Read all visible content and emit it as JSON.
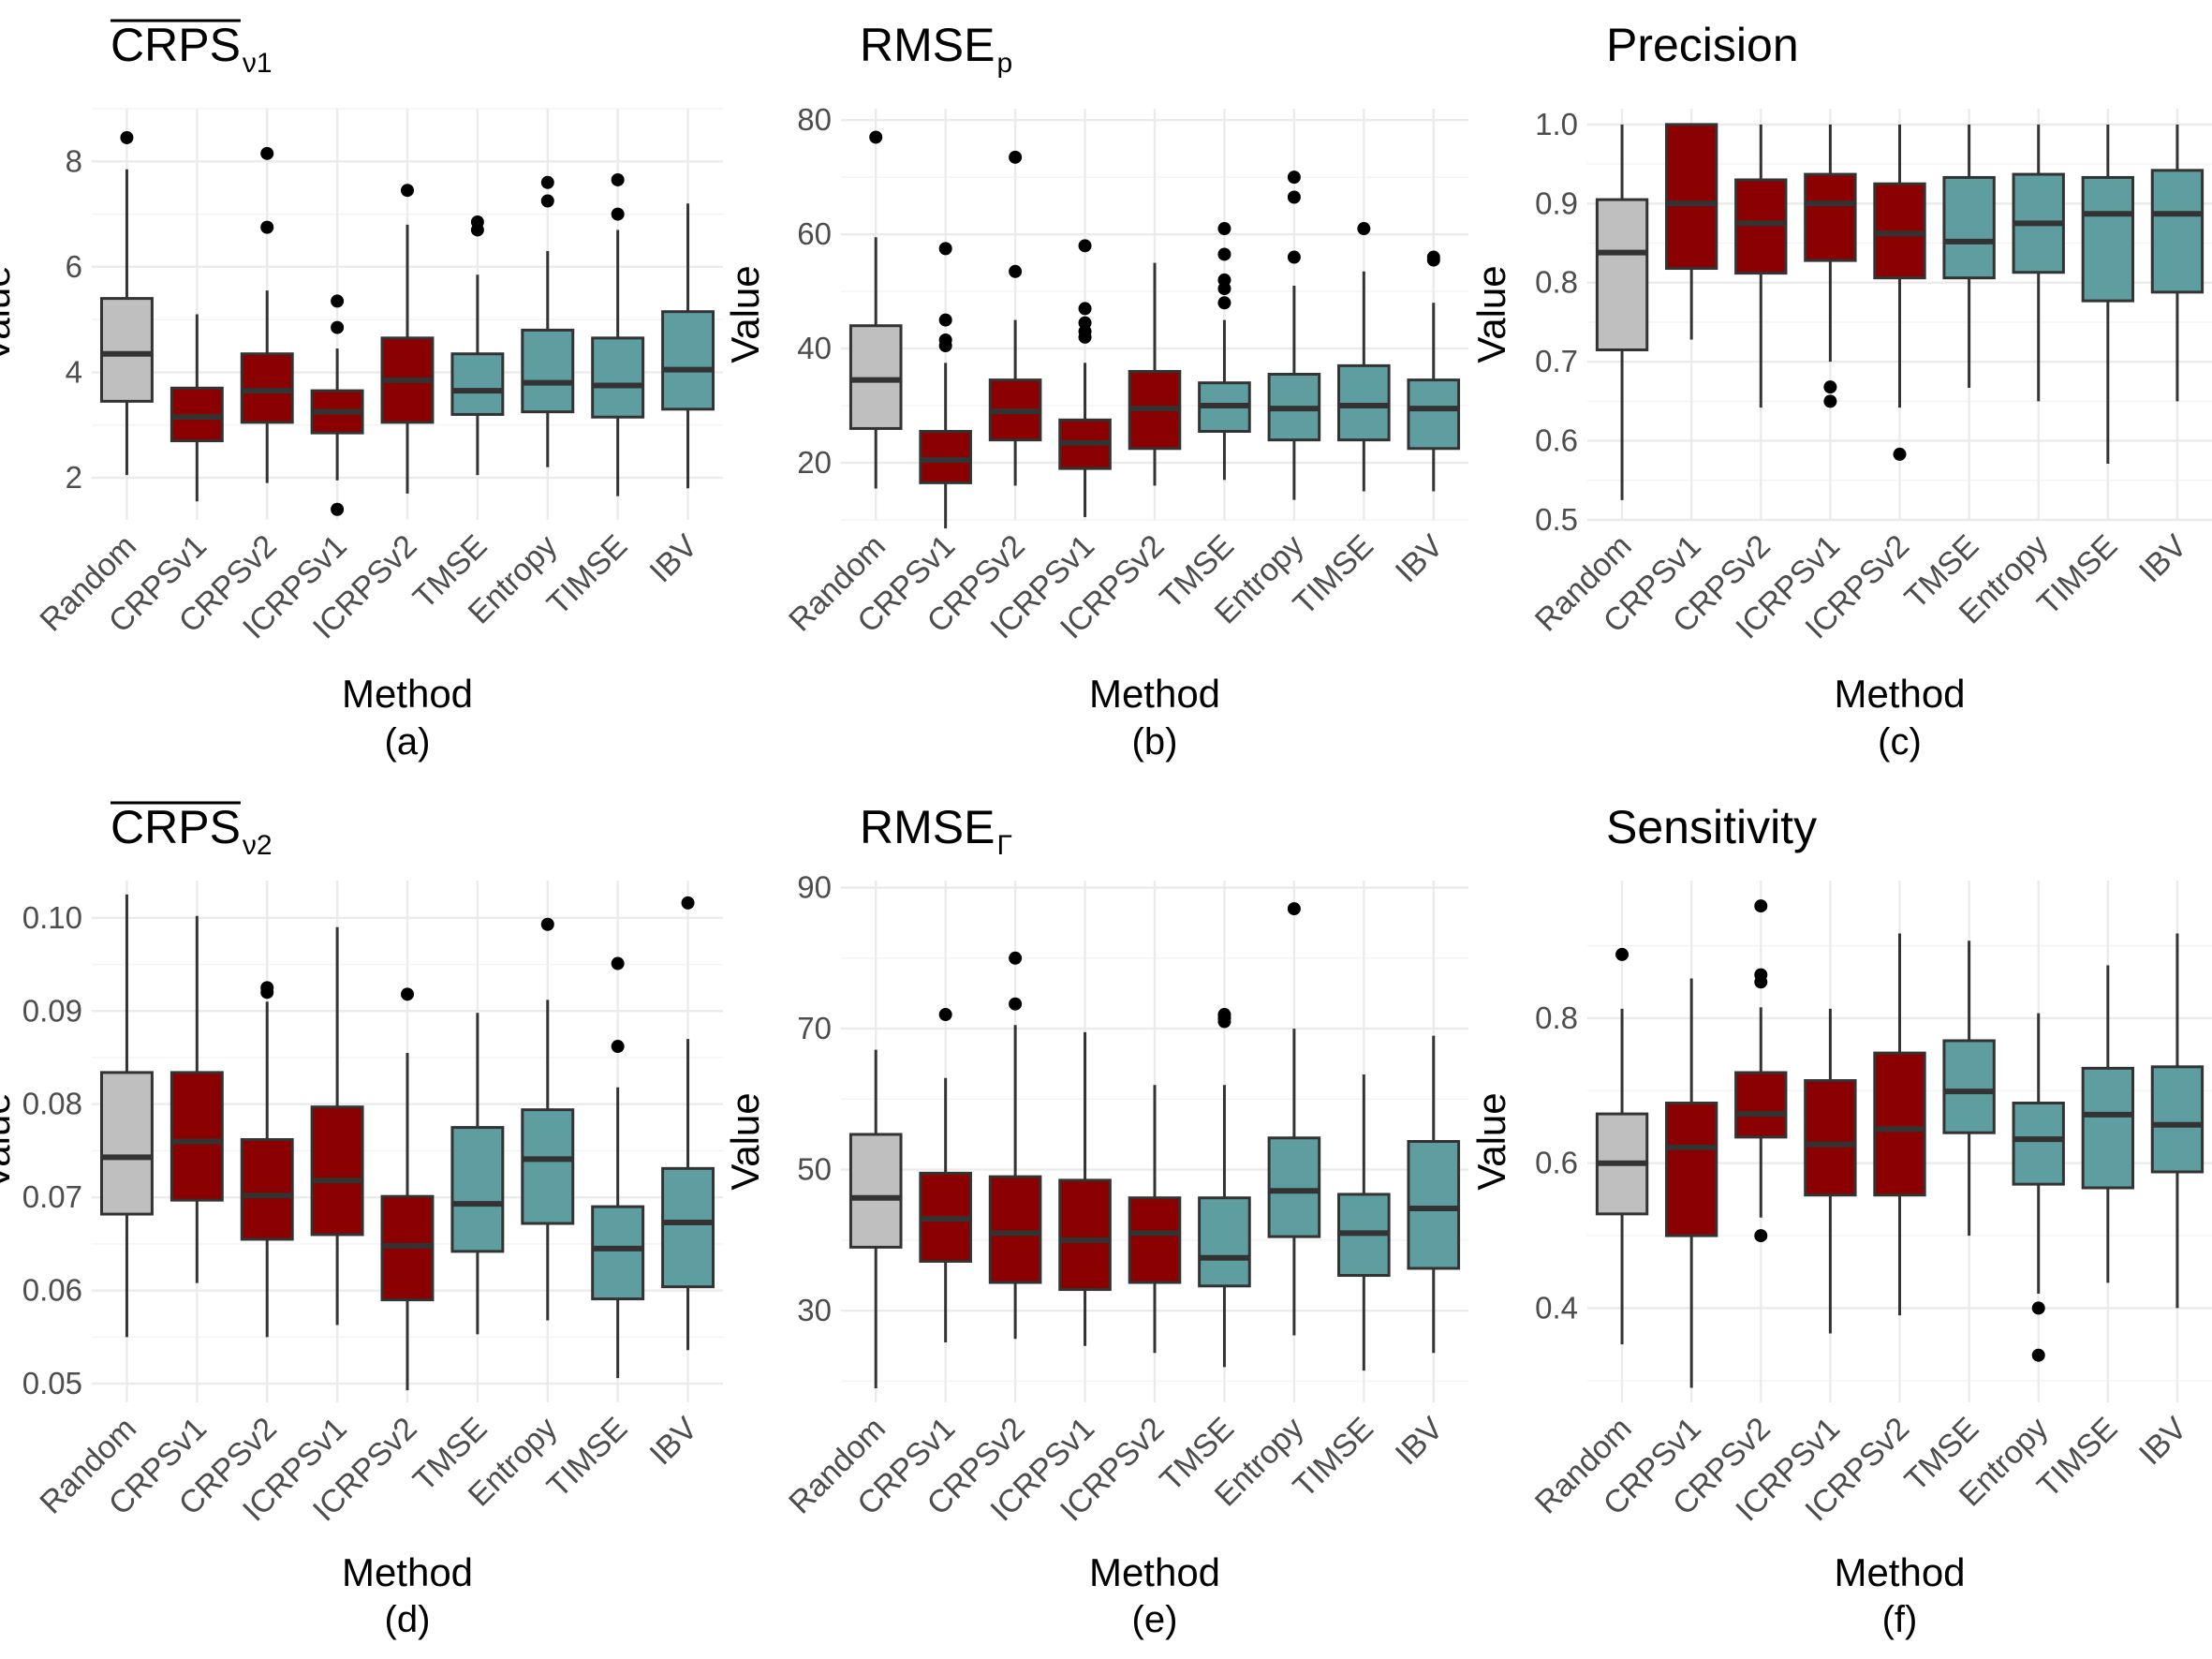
{
  "colors": {
    "baseline": "#bfbfbf",
    "crps": "#8b0000",
    "other": "#5f9ea0",
    "edge": "#333333",
    "median": "#333333"
  },
  "chart_data": [
    {
      "panel": "(a)",
      "type": "box",
      "title": "CRPS",
      "title_sub": "ν1",
      "title_overline": true,
      "xlabel": "Method",
      "ylabel": "Value",
      "ylim": [
        1.2,
        9.0
      ],
      "yticks": [
        2,
        4,
        6,
        8
      ],
      "categories": [
        "Random",
        "CRPSv1",
        "CRPSv2",
        "ICRPSv1",
        "ICRPSv2",
        "TMSE",
        "Entropy",
        "TIMSE",
        "IBV"
      ],
      "groups": [
        "baseline",
        "crps",
        "crps",
        "crps",
        "crps",
        "other",
        "other",
        "other",
        "other"
      ],
      "boxes": [
        {
          "lo": 2.05,
          "q1": 3.45,
          "median": 4.35,
          "q3": 5.4,
          "hi": 7.85,
          "out": [
            8.45
          ]
        },
        {
          "lo": 1.55,
          "q1": 2.7,
          "median": 3.15,
          "q3": 3.7,
          "hi": 5.1,
          "out": []
        },
        {
          "lo": 1.9,
          "q1": 3.05,
          "median": 3.65,
          "q3": 4.35,
          "hi": 5.55,
          "out": [
            6.75,
            8.15
          ]
        },
        {
          "lo": 1.95,
          "q1": 2.85,
          "median": 3.25,
          "q3": 3.65,
          "hi": 4.45,
          "out": [
            1.4,
            4.85,
            5.35
          ]
        },
        {
          "lo": 1.7,
          "q1": 3.05,
          "median": 3.85,
          "q3": 4.65,
          "hi": 6.8,
          "out": [
            7.45
          ]
        },
        {
          "lo": 2.05,
          "q1": 3.2,
          "median": 3.65,
          "q3": 4.35,
          "hi": 5.85,
          "out": [
            6.7,
            6.85
          ]
        },
        {
          "lo": 2.2,
          "q1": 3.25,
          "median": 3.8,
          "q3": 4.8,
          "hi": 6.3,
          "out": [
            7.25,
            7.6
          ]
        },
        {
          "lo": 1.65,
          "q1": 3.15,
          "median": 3.75,
          "q3": 4.65,
          "hi": 6.7,
          "out": [
            7.0,
            7.65
          ]
        },
        {
          "lo": 1.8,
          "q1": 3.3,
          "median": 4.05,
          "q3": 5.15,
          "hi": 7.2,
          "out": []
        }
      ]
    },
    {
      "panel": "(b)",
      "type": "box",
      "title": "RMSE",
      "title_sub": "p",
      "title_overline": false,
      "xlabel": "Method",
      "ylabel": "Value",
      "ylim": [
        10,
        82
      ],
      "yticks": [
        20,
        40,
        60,
        80
      ],
      "categories": [
        "Random",
        "CRPSv1",
        "CRPSv2",
        "ICRPSv1",
        "ICRPSv2",
        "TMSE",
        "Entropy",
        "TIMSE",
        "IBV"
      ],
      "groups": [
        "baseline",
        "crps",
        "crps",
        "crps",
        "crps",
        "other",
        "other",
        "other",
        "other"
      ],
      "boxes": [
        {
          "lo": 15.5,
          "q1": 26.0,
          "median": 34.5,
          "q3": 44.0,
          "hi": 59.5,
          "out": [
            77.0
          ]
        },
        {
          "lo": 8.5,
          "q1": 16.5,
          "median": 20.5,
          "q3": 25.5,
          "hi": 37.5,
          "out": [
            40.5,
            41.5,
            45.0,
            57.5
          ]
        },
        {
          "lo": 16.0,
          "q1": 24.0,
          "median": 29.0,
          "q3": 34.5,
          "hi": 45.0,
          "out": [
            53.5,
            73.5
          ]
        },
        {
          "lo": 10.5,
          "q1": 19.0,
          "median": 23.5,
          "q3": 27.5,
          "hi": 37.5,
          "out": [
            42.0,
            43.0,
            44.5,
            47.0,
            58.0
          ]
        },
        {
          "lo": 16.0,
          "q1": 22.5,
          "median": 29.5,
          "q3": 36.0,
          "hi": 55.0,
          "out": []
        },
        {
          "lo": 17.0,
          "q1": 25.5,
          "median": 30.0,
          "q3": 34.0,
          "hi": 45.0,
          "out": [
            48.0,
            50.5,
            52.0,
            56.5,
            61.0
          ]
        },
        {
          "lo": 13.5,
          "q1": 24.0,
          "median": 29.5,
          "q3": 35.5,
          "hi": 51.0,
          "out": [
            56.0,
            66.5,
            70.0
          ]
        },
        {
          "lo": 15.0,
          "q1": 24.0,
          "median": 30.0,
          "q3": 37.0,
          "hi": 53.5,
          "out": [
            61.0
          ]
        },
        {
          "lo": 15.0,
          "q1": 22.5,
          "median": 29.5,
          "q3": 34.5,
          "hi": 48.0,
          "out": [
            55.5,
            56.0
          ]
        }
      ]
    },
    {
      "panel": "(c)",
      "type": "box",
      "title": "Precision",
      "title_sub": "",
      "title_overline": false,
      "xlabel": "Method",
      "ylabel": "Value",
      "ylim": [
        0.5,
        1.02
      ],
      "yticks": [
        0.5,
        0.6,
        0.7,
        0.8,
        0.9,
        1.0
      ],
      "ytick_labels": [
        "0.5",
        "0.6",
        "0.7",
        "0.8",
        "0.9",
        "1.0"
      ],
      "categories": [
        "Random",
        "CRPSv1",
        "CRPSv2",
        "ICRPSv1",
        "ICRPSv2",
        "TMSE",
        "Entropy",
        "TIMSE",
        "IBV"
      ],
      "groups": [
        "baseline",
        "crps",
        "crps",
        "crps",
        "crps",
        "other",
        "other",
        "other",
        "other"
      ],
      "boxes": [
        {
          "lo": 0.525,
          "q1": 0.715,
          "median": 0.838,
          "q3": 0.905,
          "hi": 1.0,
          "out": []
        },
        {
          "lo": 0.728,
          "q1": 0.818,
          "median": 0.9,
          "q3": 1.0,
          "hi": 1.0,
          "out": []
        },
        {
          "lo": 0.642,
          "q1": 0.812,
          "median": 0.875,
          "q3": 0.93,
          "hi": 1.0,
          "out": []
        },
        {
          "lo": 0.7,
          "q1": 0.828,
          "median": 0.9,
          "q3": 0.937,
          "hi": 1.0,
          "out": [
            0.65,
            0.668
          ]
        },
        {
          "lo": 0.642,
          "q1": 0.806,
          "median": 0.862,
          "q3": 0.925,
          "hi": 1.0,
          "out": [
            0.583
          ]
        },
        {
          "lo": 0.667,
          "q1": 0.806,
          "median": 0.852,
          "q3": 0.933,
          "hi": 1.0,
          "out": []
        },
        {
          "lo": 0.65,
          "q1": 0.813,
          "median": 0.875,
          "q3": 0.937,
          "hi": 1.0,
          "out": []
        },
        {
          "lo": 0.571,
          "q1": 0.777,
          "median": 0.887,
          "q3": 0.933,
          "hi": 1.0,
          "out": []
        },
        {
          "lo": 0.65,
          "q1": 0.788,
          "median": 0.887,
          "q3": 0.942,
          "hi": 1.0,
          "out": []
        }
      ]
    },
    {
      "panel": "(d)",
      "type": "box",
      "title": "CRPS",
      "title_sub": "ν2",
      "title_overline": true,
      "xlabel": "Method",
      "ylabel": "Value",
      "ylim": [
        0.048,
        0.104
      ],
      "yticks": [
        0.05,
        0.06,
        0.07,
        0.08,
        0.09,
        0.1
      ],
      "ytick_labels": [
        "0.05",
        "0.06",
        "0.07",
        "0.08",
        "0.09",
        "0.10"
      ],
      "categories": [
        "Random",
        "CRPSv1",
        "CRPSv2",
        "ICRPSv1",
        "ICRPSv2",
        "TMSE",
        "Entropy",
        "TIMSE",
        "IBV"
      ],
      "groups": [
        "baseline",
        "crps",
        "crps",
        "crps",
        "crps",
        "other",
        "other",
        "other",
        "other"
      ],
      "boxes": [
        {
          "lo": 0.055,
          "q1": 0.0682,
          "median": 0.0743,
          "q3": 0.0834,
          "hi": 0.1025,
          "out": []
        },
        {
          "lo": 0.0608,
          "q1": 0.0697,
          "median": 0.076,
          "q3": 0.0834,
          "hi": 0.1002,
          "out": []
        },
        {
          "lo": 0.055,
          "q1": 0.0655,
          "median": 0.0702,
          "q3": 0.0762,
          "hi": 0.091,
          "out": [
            0.092,
            0.0925
          ]
        },
        {
          "lo": 0.0563,
          "q1": 0.066,
          "median": 0.0718,
          "q3": 0.0797,
          "hi": 0.099,
          "out": []
        },
        {
          "lo": 0.0493,
          "q1": 0.059,
          "median": 0.0648,
          "q3": 0.0701,
          "hi": 0.0855,
          "out": [
            0.0918
          ]
        },
        {
          "lo": 0.0553,
          "q1": 0.0642,
          "median": 0.0693,
          "q3": 0.0775,
          "hi": 0.0898,
          "out": []
        },
        {
          "lo": 0.0568,
          "q1": 0.0672,
          "median": 0.0741,
          "q3": 0.0794,
          "hi": 0.0912,
          "out": [
            0.0993
          ]
        },
        {
          "lo": 0.0506,
          "q1": 0.0591,
          "median": 0.0645,
          "q3": 0.069,
          "hi": 0.0818,
          "out": [
            0.0862,
            0.0951
          ]
        },
        {
          "lo": 0.0536,
          "q1": 0.0604,
          "median": 0.0673,
          "q3": 0.0731,
          "hi": 0.087,
          "out": [
            0.1016
          ]
        }
      ]
    },
    {
      "panel": "(e)",
      "type": "box",
      "title": "RMSE",
      "title_sub": "Γ",
      "title_overline": false,
      "xlabel": "Method",
      "ylabel": "Value",
      "ylim": [
        17,
        91
      ],
      "yticks": [
        30,
        50,
        70,
        90
      ],
      "categories": [
        "Random",
        "CRPSv1",
        "CRPSv2",
        "ICRPSv1",
        "ICRPSv2",
        "TMSE",
        "Entropy",
        "TIMSE",
        "IBV"
      ],
      "groups": [
        "baseline",
        "crps",
        "crps",
        "crps",
        "crps",
        "other",
        "other",
        "other",
        "other"
      ],
      "boxes": [
        {
          "lo": 19.0,
          "q1": 39.0,
          "median": 46.0,
          "q3": 55.0,
          "hi": 67.0,
          "out": []
        },
        {
          "lo": 25.5,
          "q1": 37.0,
          "median": 43.0,
          "q3": 49.5,
          "hi": 63.0,
          "out": [
            72.0
          ]
        },
        {
          "lo": 26.0,
          "q1": 34.0,
          "median": 41.0,
          "q3": 49.0,
          "hi": 70.5,
          "out": [
            73.5,
            80.0
          ]
        },
        {
          "lo": 25.0,
          "q1": 33.0,
          "median": 40.0,
          "q3": 48.5,
          "hi": 69.5,
          "out": []
        },
        {
          "lo": 24.0,
          "q1": 34.0,
          "median": 41.0,
          "q3": 46.0,
          "hi": 62.0,
          "out": []
        },
        {
          "lo": 22.0,
          "q1": 33.5,
          "median": 37.5,
          "q3": 46.0,
          "hi": 62.0,
          "out": [
            71.0,
            71.5,
            72.0
          ]
        },
        {
          "lo": 26.5,
          "q1": 40.5,
          "median": 47.0,
          "q3": 54.5,
          "hi": 70.0,
          "out": [
            87.0
          ]
        },
        {
          "lo": 21.5,
          "q1": 35.0,
          "median": 41.0,
          "q3": 46.5,
          "hi": 63.5,
          "out": []
        },
        {
          "lo": 24.0,
          "q1": 36.0,
          "median": 44.5,
          "q3": 54.0,
          "hi": 69.0,
          "out": []
        }
      ]
    },
    {
      "panel": "(f)",
      "type": "box",
      "title": "Sensitivity",
      "title_sub": "",
      "title_overline": false,
      "xlabel": "Method",
      "ylabel": "Value",
      "ylim": [
        0.27,
        0.99
      ],
      "yticks": [
        0.4,
        0.6,
        0.8
      ],
      "ytick_labels": [
        "0.4",
        "0.6",
        "0.8"
      ],
      "categories": [
        "Random",
        "CRPSv1",
        "CRPSv2",
        "ICRPSv1",
        "ICRPSv2",
        "TMSE",
        "Entropy",
        "TIMSE",
        "IBV"
      ],
      "groups": [
        "baseline",
        "crps",
        "crps",
        "crps",
        "crps",
        "other",
        "other",
        "other",
        "other"
      ],
      "boxes": [
        {
          "lo": 0.35,
          "q1": 0.53,
          "median": 0.6,
          "q3": 0.668,
          "hi": 0.813,
          "out": [
            0.888
          ]
        },
        {
          "lo": 0.29,
          "q1": 0.5,
          "median": 0.622,
          "q3": 0.683,
          "hi": 0.855,
          "out": []
        },
        {
          "lo": 0.525,
          "q1": 0.636,
          "median": 0.668,
          "q3": 0.725,
          "hi": 0.815,
          "out": [
            0.5,
            0.85,
            0.86,
            0.955
          ]
        },
        {
          "lo": 0.365,
          "q1": 0.556,
          "median": 0.626,
          "q3": 0.714,
          "hi": 0.813,
          "out": []
        },
        {
          "lo": 0.39,
          "q1": 0.556,
          "median": 0.647,
          "q3": 0.752,
          "hi": 0.917,
          "out": []
        },
        {
          "lo": 0.5,
          "q1": 0.642,
          "median": 0.699,
          "q3": 0.769,
          "hi": 0.907,
          "out": []
        },
        {
          "lo": 0.42,
          "q1": 0.571,
          "median": 0.633,
          "q3": 0.683,
          "hi": 0.807,
          "out": [
            0.335,
            0.4
          ]
        },
        {
          "lo": 0.435,
          "q1": 0.566,
          "median": 0.667,
          "q3": 0.731,
          "hi": 0.873,
          "out": []
        },
        {
          "lo": 0.4,
          "q1": 0.588,
          "median": 0.653,
          "q3": 0.733,
          "hi": 0.917,
          "out": []
        }
      ]
    }
  ]
}
